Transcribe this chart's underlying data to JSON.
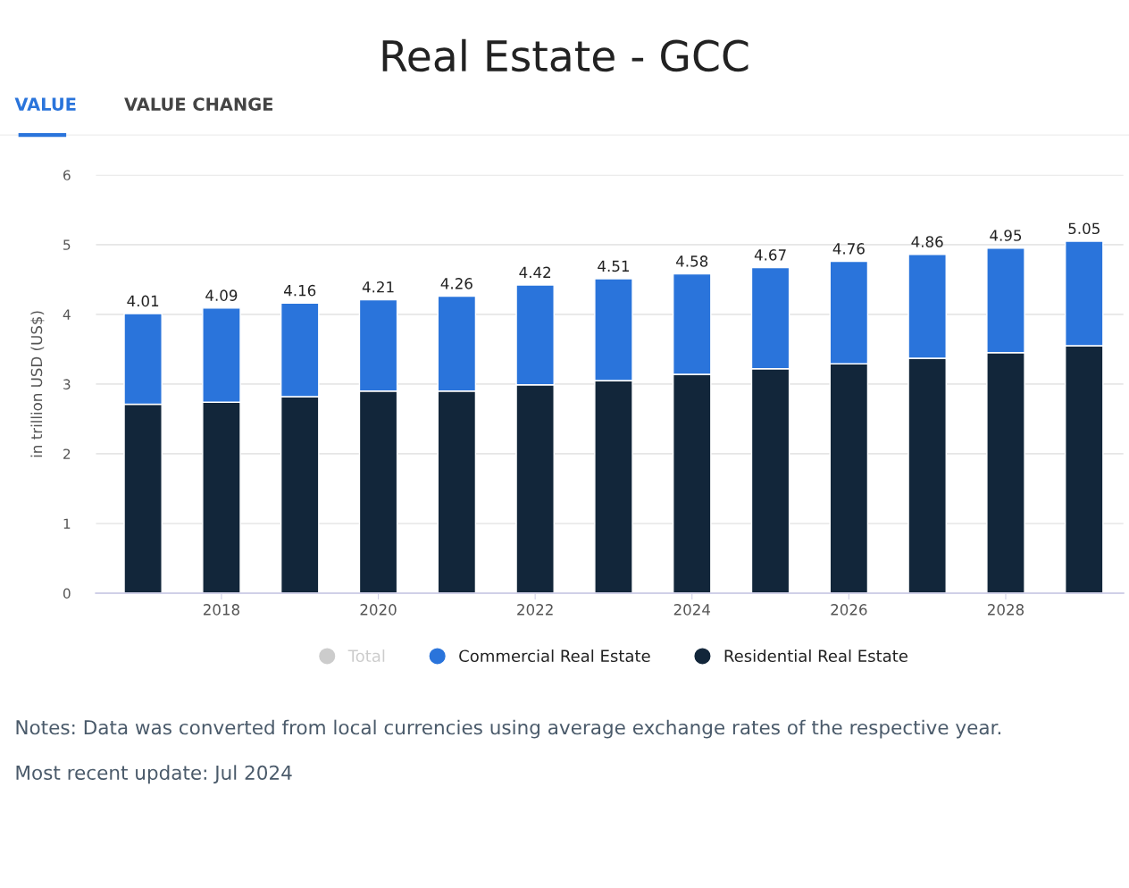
{
  "chart_data": {
    "type": "bar",
    "stacked": true,
    "title": "Real Estate - GCC",
    "ylabel": "in trillion USD (US$)",
    "x": [
      2017,
      2018,
      2019,
      2020,
      2021,
      2022,
      2023,
      2024,
      2025,
      2026,
      2027,
      2028,
      2029
    ],
    "xlim": [
      2016.4,
      2029.5
    ],
    "xticks": [
      2018,
      2020,
      2022,
      2024,
      2026,
      2028
    ],
    "ylim": [
      0,
      6
    ],
    "yticks": [
      0,
      1,
      2,
      3,
      4,
      5,
      6
    ],
    "grid": "y",
    "legend": "bottom",
    "series": [
      {
        "name": "Residential Real Estate",
        "color": "#12263a",
        "values": [
          2.71,
          2.74,
          2.82,
          2.9,
          2.9,
          2.99,
          3.05,
          3.14,
          3.22,
          3.29,
          3.37,
          3.45,
          3.55
        ]
      },
      {
        "name": "Commercial Real Estate",
        "color": "#2a74db",
        "values": [
          1.3,
          1.35,
          1.34,
          1.31,
          1.36,
          1.43,
          1.46,
          1.44,
          1.45,
          1.47,
          1.49,
          1.5,
          1.5
        ]
      },
      {
        "name": "Total",
        "color": "#cccccc",
        "values": [
          null,
          null,
          null,
          null,
          null,
          null,
          null,
          null,
          null,
          null,
          null,
          null,
          null
        ]
      }
    ],
    "totals": [
      "4.01",
      "4.09",
      "4.16",
      "4.21",
      "4.26",
      "4.42",
      "4.51",
      "4.58",
      "4.67",
      "4.76",
      "4.86",
      "4.95",
      "5.05"
    ],
    "annotations": [
      "VALUE",
      "VALUE CHANGE",
      "Notes: Data was converted from local currencies using average exchange rates of the respective year.",
      "Most recent update: Jul 2024"
    ]
  }
}
